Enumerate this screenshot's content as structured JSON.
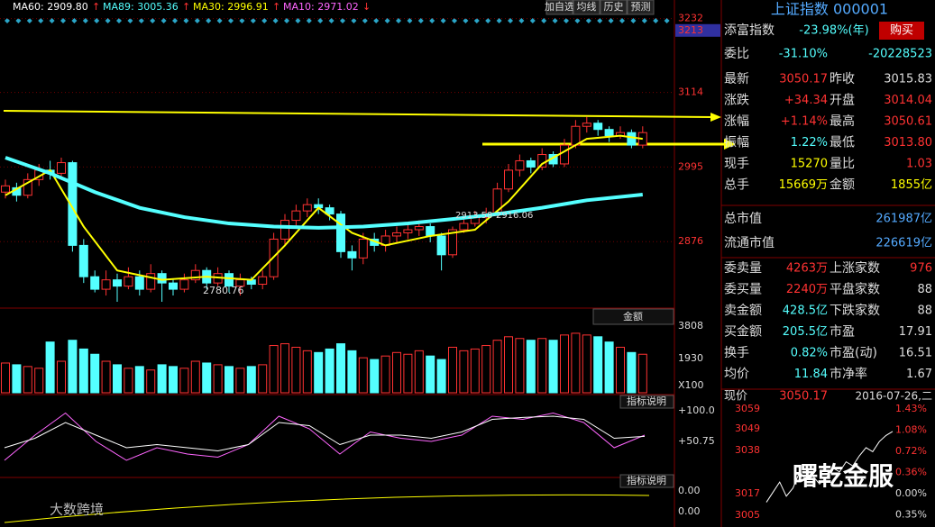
{
  "toolbar": {
    "ma": [
      {
        "text": "MA60: 2909.80",
        "arrow": "↑",
        "color": "#ffffff"
      },
      {
        "text": "MA89: 3005.36",
        "arrow": "↑",
        "color": "#54ffff"
      },
      {
        "text": "MA30: 2996.91",
        "arrow": "↑",
        "color": "#ffff00"
      },
      {
        "text": "MA10: 2971.02",
        "arrow": "↓",
        "color": "#ff66ff"
      }
    ],
    "buttons": [
      "加自选",
      "均线",
      "历史",
      "预测"
    ]
  },
  "price_axis": {
    "ylim": [
      2780,
      3240
    ],
    "ticks": [
      3232,
      3213,
      3114,
      2995,
      2876
    ],
    "highlight": 3213
  },
  "annotations": {
    "low": "2780.76",
    "range": "2913.58-2916.06"
  },
  "candles": [
    [
      2955,
      2965,
      2975,
      2945
    ],
    [
      2962,
      2950,
      2970,
      2940
    ],
    [
      2950,
      2975,
      2985,
      2945
    ],
    [
      2975,
      2990,
      3000,
      2965
    ],
    [
      2990,
      2985,
      3005,
      2975
    ],
    [
      2985,
      3002,
      3010,
      2975
    ],
    [
      3002,
      2870,
      3005,
      2860
    ],
    [
      2870,
      2820,
      2880,
      2810
    ],
    [
      2820,
      2800,
      2830,
      2795
    ],
    [
      2800,
      2815,
      2830,
      2790
    ],
    [
      2815,
      2805,
      2825,
      2780
    ],
    [
      2805,
      2820,
      2835,
      2800
    ],
    [
      2820,
      2800,
      2830,
      2790
    ],
    [
      2800,
      2825,
      2840,
      2795
    ],
    [
      2825,
      2810,
      2830,
      2780
    ],
    [
      2810,
      2800,
      2815,
      2790
    ],
    [
      2800,
      2815,
      2825,
      2795
    ],
    [
      2815,
      2830,
      2840,
      2810
    ],
    [
      2830,
      2810,
      2835,
      2800
    ],
    [
      2810,
      2825,
      2835,
      2805
    ],
    [
      2825,
      2805,
      2830,
      2795
    ],
    [
      2805,
      2815,
      2825,
      2790
    ],
    [
      2815,
      2808,
      2820,
      2800
    ],
    [
      2808,
      2820,
      2830,
      2800
    ],
    [
      2820,
      2880,
      2890,
      2815
    ],
    [
      2880,
      2910,
      2920,
      2870
    ],
    [
      2910,
      2925,
      2935,
      2900
    ],
    [
      2925,
      2935,
      2945,
      2915
    ],
    [
      2935,
      2930,
      2945,
      2920
    ],
    [
      2930,
      2920,
      2935,
      2910
    ],
    [
      2920,
      2860,
      2925,
      2850
    ],
    [
      2860,
      2850,
      2870,
      2830
    ],
    [
      2850,
      2880,
      2890,
      2840
    ],
    [
      2880,
      2870,
      2890,
      2860
    ],
    [
      2870,
      2885,
      2895,
      2860
    ],
    [
      2885,
      2890,
      2900,
      2875
    ],
    [
      2890,
      2895,
      2905,
      2880
    ],
    [
      2895,
      2900,
      2910,
      2885
    ],
    [
      2900,
      2885,
      2905,
      2875
    ],
    [
      2885,
      2855,
      2890,
      2830
    ],
    [
      2855,
      2895,
      2900,
      2850
    ],
    [
      2895,
      2905,
      2915,
      2890
    ],
    [
      2905,
      2915,
      2925,
      2900
    ],
    [
      2915,
      2920,
      2930,
      2905
    ],
    [
      2920,
      2960,
      2970,
      2915
    ],
    [
      2960,
      2990,
      3000,
      2955
    ],
    [
      2990,
      3005,
      3015,
      2980
    ],
    [
      3005,
      2995,
      3010,
      2985
    ],
    [
      2995,
      3015,
      3025,
      2990
    ],
    [
      3015,
      3000,
      3020,
      2995
    ],
    [
      3000,
      3030,
      3040,
      2995
    ],
    [
      3030,
      3060,
      3070,
      3025
    ],
    [
      3060,
      3065,
      3075,
      3050
    ],
    [
      3065,
      3055,
      3070,
      3045
    ],
    [
      3055,
      3045,
      3060,
      3035
    ],
    [
      3045,
      3050,
      3060,
      3040
    ],
    [
      3050,
      3030,
      3055,
      3025
    ],
    [
      3030,
      3050,
      3060,
      3025
    ]
  ],
  "ma_lines": [
    {
      "color": "#ffff00",
      "width": 2,
      "x": [
        0,
        4,
        7,
        10,
        14,
        18,
        22,
        25,
        28,
        31,
        34,
        38,
        42,
        45,
        48,
        52,
        55,
        57
      ],
      "values": [
        2950,
        2990,
        2900,
        2830,
        2815,
        2820,
        2815,
        2870,
        2930,
        2890,
        2870,
        2885,
        2895,
        2940,
        3000,
        3040,
        3045,
        3040
      ]
    },
    {
      "color": "#54ffff",
      "width": 4,
      "x": [
        0,
        4,
        8,
        12,
        16,
        20,
        24,
        28,
        32,
        36,
        40,
        44,
        48,
        52,
        57
      ],
      "values": [
        3010,
        2985,
        2955,
        2930,
        2915,
        2905,
        2900,
        2898,
        2900,
        2905,
        2912,
        2920,
        2930,
        2942,
        2951
      ]
    }
  ],
  "volume": {
    "label": "金额",
    "ticks": [
      "3808",
      "1930",
      "X100"
    ],
    "ylim": [
      0,
      3808
    ],
    "values": [
      1700,
      1600,
      1500,
      1400,
      2900,
      1800,
      3000,
      2500,
      2200,
      1800,
      1600,
      1400,
      1500,
      1300,
      1600,
      1500,
      1400,
      1800,
      1700,
      1600,
      1500,
      1400,
      1500,
      1600,
      2700,
      2800,
      2600,
      2400,
      2300,
      2500,
      2800,
      2400,
      2000,
      1900,
      2100,
      2300,
      2200,
      2400,
      2100,
      1900,
      2600,
      2400,
      2500,
      2700,
      3000,
      3200,
      3100,
      3000,
      3100,
      3000,
      3300,
      3400,
      3300,
      3200,
      2900,
      2600,
      2300,
      2200
    ]
  },
  "osc": {
    "label": "指标说明",
    "ticks": [
      "+100.0",
      "+50.75"
    ],
    "ylim": [
      0,
      100
    ],
    "series": [
      {
        "color": "#ff66ff",
        "values": [
          20,
          60,
          95,
          50,
          20,
          40,
          30,
          25,
          45,
          90,
          70,
          30,
          65,
          55,
          50,
          60,
          90,
          85,
          95,
          80,
          40,
          60
        ]
      },
      {
        "color": "#ffffff",
        "values": [
          40,
          55,
          80,
          60,
          40,
          45,
          40,
          35,
          45,
          80,
          75,
          45,
          60,
          60,
          55,
          65,
          85,
          88,
          90,
          85,
          55,
          58
        ]
      }
    ]
  },
  "macd": {
    "label": "指标说明",
    "ticks": [
      "0.00",
      "0.00"
    ]
  },
  "quote": {
    "title": "上证指数 000001",
    "fund": "添富指数",
    "fund_rate": "-23.98%(年)",
    "buy": "购买",
    "weibi": [
      "委比",
      "-31.10%",
      "-20228523"
    ],
    "rows": [
      [
        "最新",
        "3050.17",
        "昨收",
        "3015.83"
      ],
      [
        "涨跌",
        "+34.34",
        "开盘",
        "3014.04"
      ],
      [
        "涨幅",
        "+1.14%",
        "最高",
        "3050.61"
      ],
      [
        "振幅",
        "1.22%",
        "最低",
        "3013.80"
      ],
      [
        "现手",
        "15270",
        "量比",
        "1.03"
      ],
      [
        "总手",
        "15669万",
        "金额",
        "1855亿"
      ]
    ],
    "cap": [
      [
        "总市值",
        "261987亿"
      ],
      [
        "流通市值",
        "226619亿"
      ]
    ],
    "rows2": [
      [
        "委卖量",
        "4263万",
        "上涨家数",
        "976"
      ],
      [
        "委买量",
        "2240万",
        "平盘家数",
        "88"
      ],
      [
        "卖金额",
        "428.5亿",
        "下跌家数",
        "88"
      ],
      [
        "买金额",
        "205.5亿",
        "市盈",
        "17.91"
      ],
      [
        "换手",
        "0.82%",
        "市盈(动)",
        "16.51"
      ],
      [
        "均价",
        "11.84",
        "市净率",
        "1.67"
      ]
    ],
    "now": [
      "现价",
      "3050.17",
      "2016-07-26,二"
    ]
  },
  "mini": {
    "left": [
      "3059",
      "3049",
      "3038",
      "3017",
      "3005"
    ],
    "right": [
      "1.43%",
      "1.08%",
      "0.72%",
      "0.36%",
      "0.00%",
      "0.35%"
    ],
    "ylim": [
      3005,
      3062
    ],
    "values": [
      3015,
      3020,
      3025,
      3018,
      3022,
      3030,
      3026,
      3028,
      3024,
      3027,
      3032,
      3030,
      3035,
      3033,
      3038,
      3042,
      3040,
      3045,
      3048,
      3050
    ]
  },
  "watermarks": [
    "曙乾金服",
    "大数跨境"
  ]
}
